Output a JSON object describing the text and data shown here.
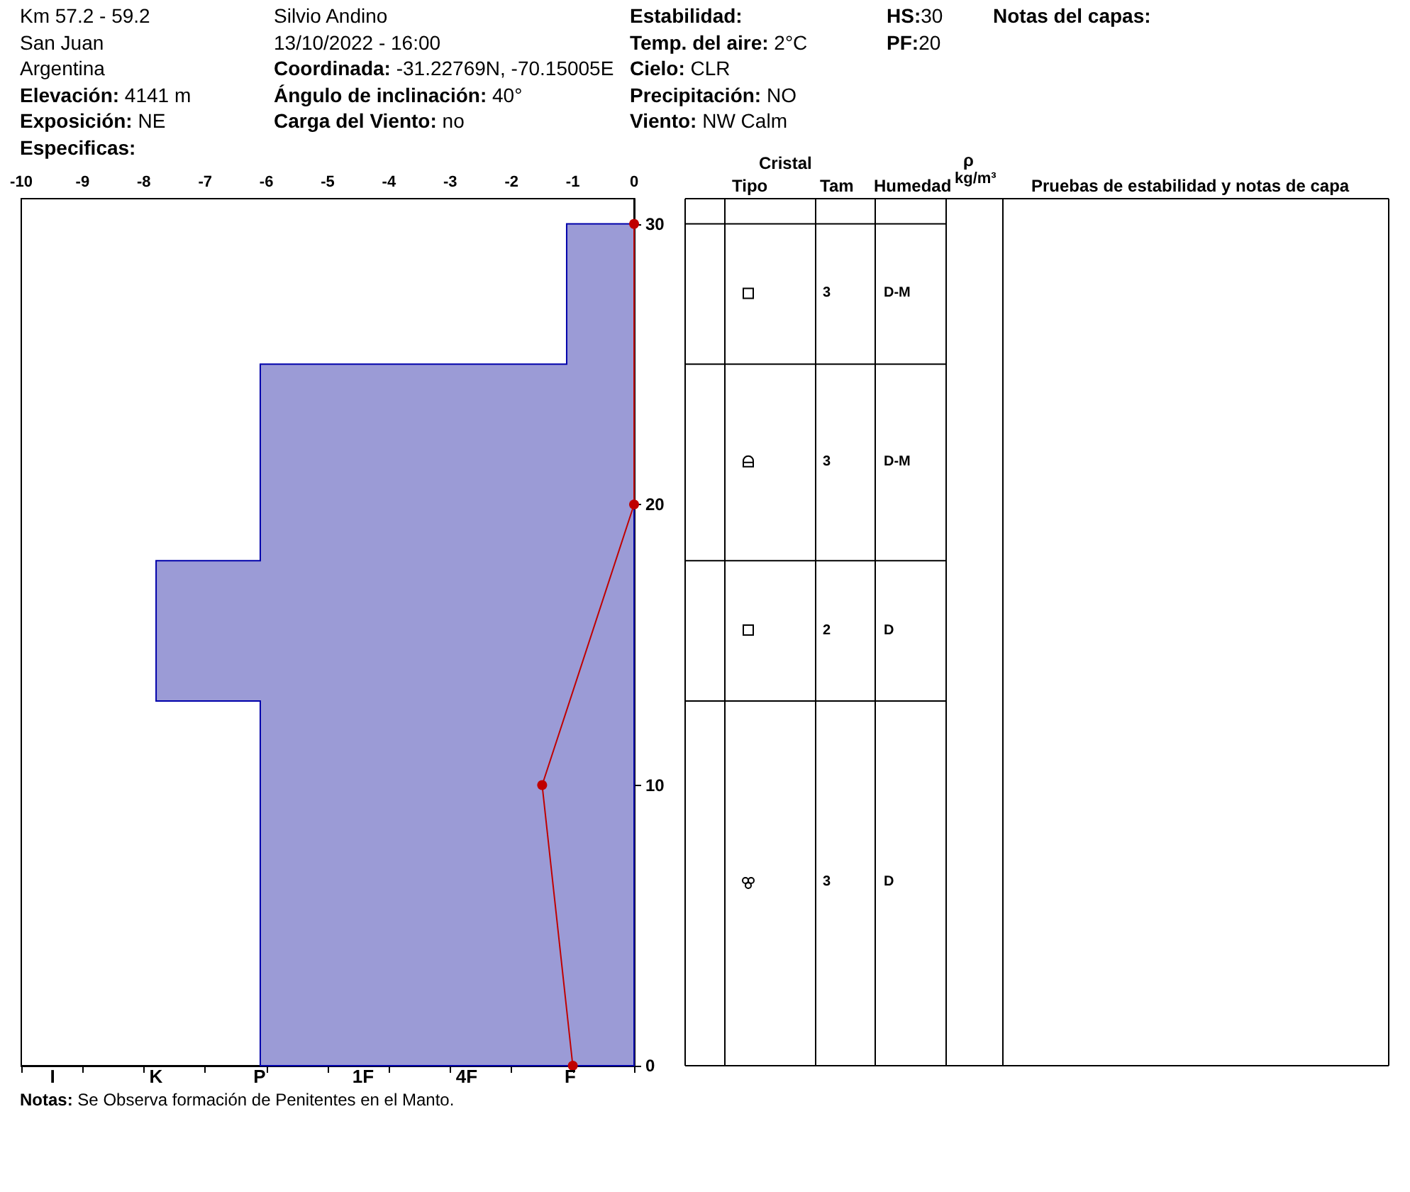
{
  "chart_data": [
    {
      "type": "other",
      "annotations": [
        "Km 57.2 - 59.2",
        "San Juan",
        "Argentina",
        "Elevación: 4141 m",
        "Exposición: NE",
        "Especificas:",
        "Silvio Andino",
        "13/10/2022 - 16:00",
        "Coordinada: -31.22769N, -70.15005E",
        "Ángulo de inclinación: 40°",
        "Carga del Viento: no",
        "Estabilidad:",
        "Temp. del aire: 2°C",
        "Cielo: CLR",
        "Precipitación: NO",
        "Viento: NW Calm",
        "HS:30",
        "PF:20",
        "Notas del capas:"
      ]
    },
    {
      "type": "line",
      "xlim": [
        -10,
        0
      ],
      "xticks": [
        -10,
        -9,
        -8,
        -7,
        -6,
        -5,
        -4,
        -3,
        -2,
        -1,
        0
      ],
      "ylim": [
        0,
        30.9
      ],
      "yticks": [
        0,
        10,
        20,
        30
      ],
      "series": [
        {
          "type": "area",
          "x": [
            0,
            -6.1,
            -6.1,
            -7.8,
            -7.8,
            -6.1,
            -6.1,
            -1.1,
            -1.1,
            0
          ],
          "values": [
            0,
            0,
            13,
            13,
            18,
            18,
            25,
            25,
            30,
            30
          ],
          "color": "#9b9bd6"
        },
        {
          "type": "line",
          "x": [
            -1.0,
            -1.5,
            0,
            0
          ],
          "values": [
            0,
            10,
            20,
            30
          ],
          "color": "#c00000",
          "marker": "circle"
        }
      ],
      "annotations": [
        "I",
        "K",
        "P",
        "1F",
        "4F",
        "F",
        "Notas: Se Observa formación de Penitentes en el Manto."
      ]
    },
    {
      "type": "other",
      "annotations": [
        "Cristal",
        "Tipo",
        "Tam",
        "Humedad",
        "ρ",
        "kg/m³",
        "Pruebas de estabilidad y notas de capa",
        "3",
        "D-M",
        "3",
        "D-M",
        "2",
        "D",
        "3",
        "D"
      ]
    }
  ]
}
